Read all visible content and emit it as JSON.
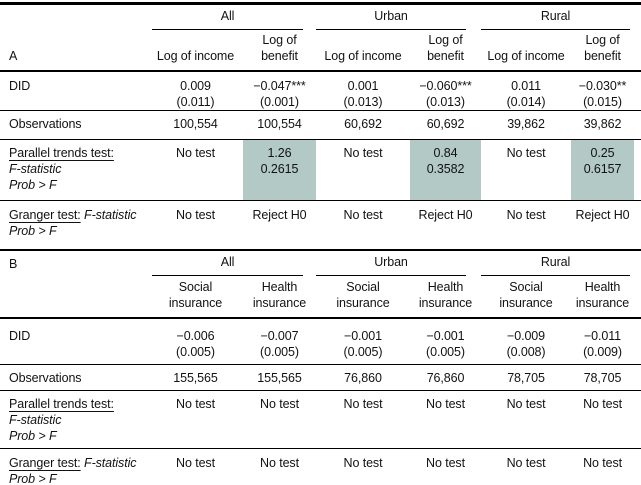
{
  "table": {
    "highlight_color": "#b2c9c6",
    "groups": [
      "All",
      "Urban",
      "Rural"
    ],
    "panel_a": {
      "label": "A",
      "col_headers": [
        [
          "Log of income"
        ],
        [
          "Log of",
          "benefit"
        ],
        [
          "Log of income"
        ],
        [
          "Log of",
          "benefit"
        ],
        [
          "Log of income"
        ],
        [
          "Log of",
          "benefit"
        ]
      ],
      "rows": [
        {
          "key": "did",
          "label_lines": [
            [
              {
                "text": "DID"
              }
            ]
          ],
          "cells": [
            {
              "lines": [
                "0.009",
                "(0.011)"
              ]
            },
            {
              "lines": [
                "−0.047***",
                "(0.001)"
              ]
            },
            {
              "lines": [
                "0.001",
                "(0.013)"
              ]
            },
            {
              "lines": [
                "−0.060***",
                "(0.013)"
              ]
            },
            {
              "lines": [
                "0.011",
                "(0.014)"
              ]
            },
            {
              "lines": [
                "−0.030**",
                "(0.015)"
              ]
            }
          ]
        },
        {
          "key": "observations",
          "label_lines": [
            [
              {
                "text": "Observations"
              }
            ]
          ],
          "cells": [
            {
              "lines": [
                "100,554"
              ]
            },
            {
              "lines": [
                "100,554"
              ]
            },
            {
              "lines": [
                "60,692"
              ]
            },
            {
              "lines": [
                "60,692"
              ]
            },
            {
              "lines": [
                "39,862"
              ]
            },
            {
              "lines": [
                "39,862"
              ]
            }
          ]
        },
        {
          "key": "parallel",
          "label_lines": [
            [
              {
                "text": "Parallel trends test:",
                "underline": true
              }
            ],
            [
              {
                "text": "F-statistic",
                "italic": true
              }
            ],
            [
              {
                "text": "Prob > F",
                "italic": true
              }
            ]
          ],
          "cells": [
            {
              "lines": [
                "No test"
              ]
            },
            {
              "lines": [
                "1.26",
                "0.2615"
              ],
              "highlight": true
            },
            {
              "lines": [
                "No test"
              ]
            },
            {
              "lines": [
                "0.84",
                "0.3582"
              ],
              "highlight": true
            },
            {
              "lines": [
                "No test"
              ]
            },
            {
              "lines": [
                "0.25",
                "0.6157"
              ],
              "highlight": true
            }
          ]
        },
        {
          "key": "granger",
          "label_lines": [
            [
              {
                "text": "Granger test:",
                "underline": true
              },
              {
                "text": " F-statistic",
                "italic": true
              }
            ],
            [
              {
                "text": "Prob > F",
                "italic": true
              }
            ]
          ],
          "cells": [
            {
              "lines": [
                "No test"
              ]
            },
            {
              "lines": [
                "Reject H0"
              ]
            },
            {
              "lines": [
                "No test"
              ]
            },
            {
              "lines": [
                "Reject H0"
              ]
            },
            {
              "lines": [
                "No test"
              ]
            },
            {
              "lines": [
                "Reject H0"
              ]
            }
          ]
        }
      ]
    },
    "panel_b": {
      "label": "B",
      "col_headers": [
        [
          "Social",
          "insurance"
        ],
        [
          "Health",
          "insurance"
        ],
        [
          "Social",
          "insurance"
        ],
        [
          "Health",
          "insurance"
        ],
        [
          "Social",
          "insurance"
        ],
        [
          "Health",
          "insurance"
        ]
      ],
      "rows": [
        {
          "key": "did",
          "label_lines": [
            [
              {
                "text": "DID"
              }
            ]
          ],
          "cells": [
            {
              "lines": [
                "−0.006",
                "(0.005)"
              ]
            },
            {
              "lines": [
                "−0.007",
                "(0.005)"
              ]
            },
            {
              "lines": [
                "−0.001",
                "(0.005)"
              ]
            },
            {
              "lines": [
                "−0.001",
                "(0.005)"
              ]
            },
            {
              "lines": [
                "−0.009",
                "(0.008)"
              ]
            },
            {
              "lines": [
                "−0.011",
                "(0.009)"
              ]
            }
          ]
        },
        {
          "key": "observations",
          "label_lines": [
            [
              {
                "text": "Observations"
              }
            ]
          ],
          "cells": [
            {
              "lines": [
                "155,565"
              ]
            },
            {
              "lines": [
                "155,565"
              ]
            },
            {
              "lines": [
                "76,860"
              ]
            },
            {
              "lines": [
                "76,860"
              ]
            },
            {
              "lines": [
                "78,705"
              ]
            },
            {
              "lines": [
                "78,705"
              ]
            }
          ]
        },
        {
          "key": "parallel",
          "label_lines": [
            [
              {
                "text": "Parallel trends test:",
                "underline": true
              }
            ],
            [
              {
                "text": "F-statistic",
                "italic": true
              }
            ],
            [
              {
                "text": "Prob > F",
                "italic": true
              }
            ]
          ],
          "cells": [
            {
              "lines": [
                "No test"
              ]
            },
            {
              "lines": [
                "No test"
              ]
            },
            {
              "lines": [
                "No test"
              ]
            },
            {
              "lines": [
                "No test"
              ]
            },
            {
              "lines": [
                "No test"
              ]
            },
            {
              "lines": [
                "No test"
              ]
            }
          ]
        },
        {
          "key": "granger",
          "label_lines": [
            [
              {
                "text": "Granger test:",
                "underline": true
              },
              {
                "text": " F-statistic",
                "italic": true
              }
            ],
            [
              {
                "text": "Prob > F",
                "italic": true
              }
            ]
          ],
          "cells": [
            {
              "lines": [
                "No test"
              ]
            },
            {
              "lines": [
                "No test"
              ]
            },
            {
              "lines": [
                "No test"
              ]
            },
            {
              "lines": [
                "No test"
              ]
            },
            {
              "lines": [
                "No test"
              ]
            },
            {
              "lines": [
                "No test"
              ]
            }
          ]
        }
      ]
    }
  }
}
